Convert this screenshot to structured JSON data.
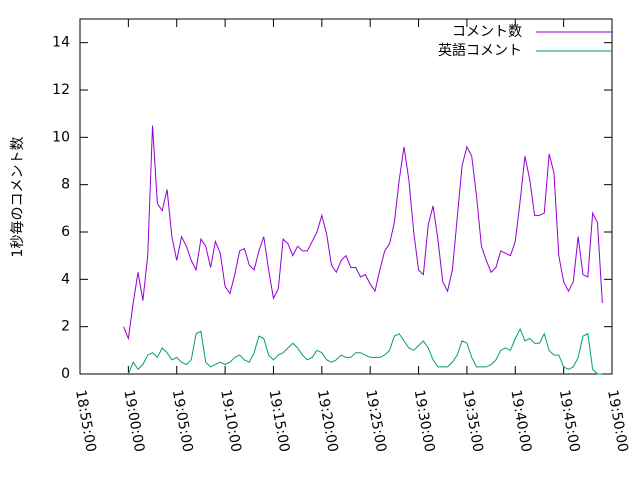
{
  "chart_data": {
    "type": "line",
    "ylabel": "1秒毎のコメント数",
    "x": [
      "18:59:30",
      "19:00:00",
      "19:00:30",
      "19:01:00",
      "19:01:30",
      "19:02:00",
      "19:02:30",
      "19:03:00",
      "19:03:30",
      "19:04:00",
      "19:04:30",
      "19:05:00",
      "19:05:30",
      "19:06:00",
      "19:06:30",
      "19:07:00",
      "19:07:30",
      "19:08:00",
      "19:08:30",
      "19:09:00",
      "19:09:30",
      "19:10:00",
      "19:10:30",
      "19:11:00",
      "19:11:30",
      "19:12:00",
      "19:12:30",
      "19:13:00",
      "19:13:30",
      "19:14:00",
      "19:14:30",
      "19:15:00",
      "19:15:30",
      "19:16:00",
      "19:16:30",
      "19:17:00",
      "19:17:30",
      "19:18:00",
      "19:18:30",
      "19:19:00",
      "19:19:30",
      "19:20:00",
      "19:20:30",
      "19:21:00",
      "19:21:30",
      "19:22:00",
      "19:22:30",
      "19:23:00",
      "19:23:30",
      "19:24:00",
      "19:24:30",
      "19:25:00",
      "19:25:30",
      "19:26:00",
      "19:26:30",
      "19:27:00",
      "19:27:30",
      "19:28:00",
      "19:28:30",
      "19:29:00",
      "19:29:30",
      "19:30:00",
      "19:30:30",
      "19:31:00",
      "19:31:30",
      "19:32:00",
      "19:32:30",
      "19:33:00",
      "19:33:30",
      "19:34:00",
      "19:34:30",
      "19:35:00",
      "19:35:30",
      "19:36:00",
      "19:36:30",
      "19:37:00",
      "19:37:30",
      "19:38:00",
      "19:38:30",
      "19:39:00",
      "19:39:30",
      "19:40:00",
      "19:40:30",
      "19:41:00",
      "19:41:30",
      "19:42:00",
      "19:42:30",
      "19:43:00",
      "19:43:30",
      "19:44:00",
      "19:44:30",
      "19:45:00",
      "19:45:30",
      "19:46:00",
      "19:46:30",
      "19:47:00",
      "19:47:30",
      "19:48:00",
      "19:48:30",
      "19:49:00"
    ],
    "series": [
      {
        "name": "コメント数",
        "color": "#9400d3",
        "values": [
          2.0,
          1.5,
          3.0,
          4.3,
          3.1,
          5.0,
          10.5,
          7.2,
          6.9,
          7.8,
          5.8,
          4.8,
          5.8,
          5.4,
          4.8,
          4.4,
          5.7,
          5.4,
          4.5,
          5.6,
          5.1,
          3.7,
          3.4,
          4.2,
          5.2,
          5.3,
          4.6,
          4.4,
          5.2,
          5.8,
          4.4,
          3.2,
          3.6,
          5.7,
          5.5,
          5.0,
          5.4,
          5.2,
          5.2,
          5.6,
          6.0,
          6.7,
          5.9,
          4.6,
          4.3,
          4.8,
          5.0,
          4.5,
          4.5,
          4.1,
          4.2,
          3.8,
          3.5,
          4.4,
          5.2,
          5.5,
          6.4,
          8.2,
          9.6,
          8.2,
          6.0,
          4.4,
          4.2,
          6.3,
          7.1,
          5.7,
          3.9,
          3.5,
          4.4,
          6.6,
          8.8,
          9.6,
          9.2,
          7.5,
          5.4,
          4.8,
          4.3,
          4.5,
          5.2,
          5.1,
          5.0,
          5.6,
          7.3,
          9.2,
          8.2,
          6.7,
          6.7,
          6.8,
          9.3,
          8.5,
          5.0,
          3.9,
          3.5,
          3.9,
          5.8,
          4.2,
          4.1,
          6.8,
          6.4,
          3.0
        ]
      },
      {
        "name": "英語コメント",
        "color": "#009e73",
        "values": [
          null,
          0,
          0.5,
          0.2,
          0.4,
          0.8,
          0.9,
          0.7,
          1.1,
          0.9,
          0.6,
          0.7,
          0.5,
          0.4,
          0.6,
          1.7,
          1.8,
          0.5,
          0.3,
          0.4,
          0.5,
          0.4,
          0.5,
          0.7,
          0.8,
          0.6,
          0.5,
          0.9,
          1.6,
          1.5,
          0.8,
          0.6,
          0.8,
          0.9,
          1.1,
          1.3,
          1.1,
          0.8,
          0.6,
          0.7,
          1.0,
          0.9,
          0.6,
          0.5,
          0.6,
          0.8,
          0.7,
          0.7,
          0.9,
          0.9,
          0.8,
          0.7,
          0.7,
          0.7,
          0.8,
          1.0,
          1.6,
          1.7,
          1.4,
          1.1,
          1.0,
          1.2,
          1.4,
          1.1,
          0.6,
          0.3,
          0.3,
          0.3,
          0.5,
          0.8,
          1.4,
          1.3,
          0.7,
          0.3,
          0.3,
          0.3,
          0.4,
          0.6,
          1.0,
          1.1,
          1.0,
          1.5,
          1.9,
          1.4,
          1.5,
          1.3,
          1.3,
          1.7,
          1.0,
          0.8,
          0.8,
          0.3,
          0.2,
          0.3,
          0.7,
          1.6,
          1.7,
          0.2,
          0,
          0
        ]
      }
    ],
    "xlim": [
      "18:55:00",
      "19:50:00"
    ],
    "xticks": [
      "18:55:00",
      "19:00:00",
      "19:05:00",
      "19:10:00",
      "19:15:00",
      "19:20:00",
      "19:25:00",
      "19:30:00",
      "19:35:00",
      "19:40:00",
      "19:45:00",
      "19:50:00"
    ],
    "ylim": [
      0,
      15
    ],
    "yticks": [
      0,
      2,
      4,
      6,
      8,
      10,
      12,
      14
    ],
    "legend": "top-right",
    "grid": false
  }
}
